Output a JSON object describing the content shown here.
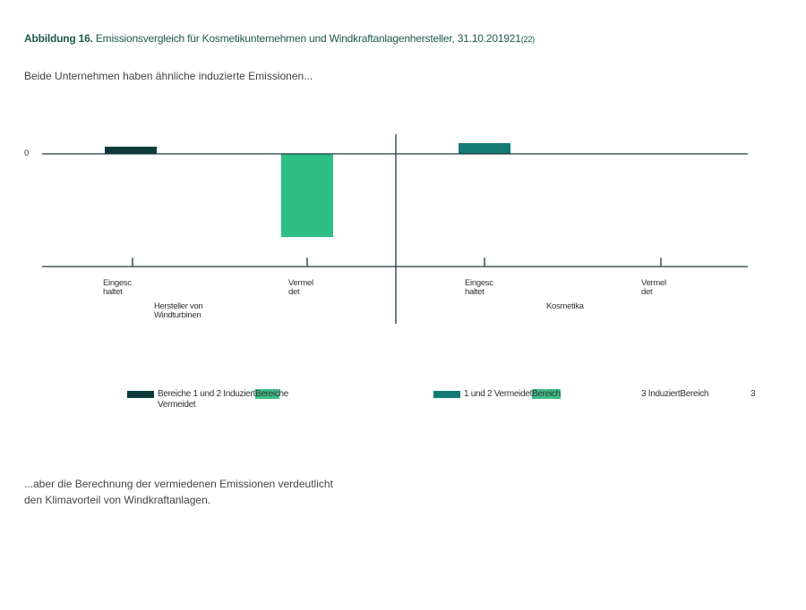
{
  "title": {
    "label": "Abbildung 16.",
    "text": "Emissionsvergleich für Kosmetikunternehmen und Windkraftanlagenhersteller, 31.10.201921",
    "ref": "(22)"
  },
  "subtitle": "Beide Unternehmen haben ähnliche induzierte Emissionen...",
  "conclusion": "...aber die Berechnung der vermiedenen Emissionen verdeutlicht den Klimavorteil von Windkraftanlagen.",
  "chart_data": {
    "type": "bar",
    "groups": [
      {
        "name": "Hersteller von Windturbinen",
        "categories": [
          "Eingesc haltet",
          "Vermel det"
        ]
      },
      {
        "name": "Kosmetika",
        "categories": [
          "Eingesc haltet",
          "Vermel det"
        ]
      }
    ],
    "bars": [
      {
        "group": 0,
        "category": 0,
        "value": 0.6,
        "color": "#0d3b3a"
      },
      {
        "group": 0,
        "category": 1,
        "value": -7,
        "color": "#2dbf85"
      },
      {
        "group": 1,
        "category": 0,
        "value": 0.9,
        "color": "#137a74"
      }
    ],
    "ytick_labels": [
      "0"
    ],
    "ylim": [
      -9.5,
      1.7
    ],
    "grid": false,
    "legend": {
      "position": "bottom",
      "items": [
        {
          "text_before": "Bereiche 1 und 2 Induziert",
          "highlight": "Bereic",
          "text_after": "he",
          "line2": "Vermeidet",
          "color": "#0d3b3a"
        },
        {
          "text_before": "1 und 2 Vermeidet",
          "highlight": "Bereich",
          "text_after": "",
          "color": "#137a74"
        },
        {
          "text_before": "3 InduziertBereich",
          "highlight": "",
          "text_after": "",
          "color": ""
        },
        {
          "text_before": "3",
          "highlight": "",
          "text_after": "",
          "color": ""
        }
      ]
    }
  }
}
